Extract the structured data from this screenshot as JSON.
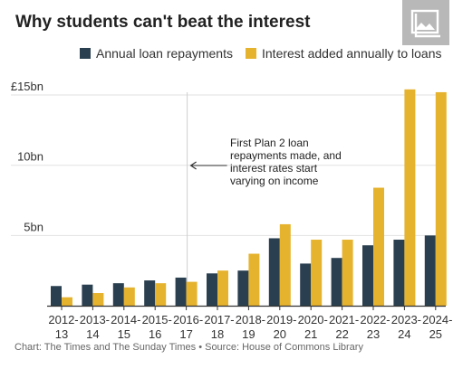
{
  "colors": {
    "repayments": "#2a4050",
    "interest": "#e6b32e",
    "grid": "#e2e2e2",
    "baseline": "#333333",
    "text": "#222222",
    "icon_bg": "#b8b8b8"
  },
  "header": {
    "title": "Why students can't beat the interest"
  },
  "toolbar": {
    "icon": "image-gallery-icon"
  },
  "legend": {
    "items": [
      {
        "label": "Annual loan repayments",
        "color": "#2a4050"
      },
      {
        "label": "Interest added annually to loans",
        "color": "#e6b32e"
      }
    ]
  },
  "annotation": {
    "lines": [
      "First Plan 2 loan",
      "repayments made, and",
      "interest rates start",
      "varying on income"
    ],
    "category": "2016-17",
    "arrow": "left-arrow"
  },
  "footer": {
    "text": "Chart: The Times and The Sunday Times • Source: House of Commons Library"
  },
  "chart_data": {
    "type": "bar",
    "title": "Why students can't beat the interest",
    "xlabel": "",
    "ylabel": "",
    "categories": [
      "2012-13",
      "2013-14",
      "2014-15",
      "2015-16",
      "2016-17",
      "2017-18",
      "2018-19",
      "2019-20",
      "2020-21",
      "2021-22",
      "2022-23",
      "2023-24",
      "2024-25"
    ],
    "category_labels": [
      [
        "2012-",
        "13"
      ],
      [
        "2013-",
        "14"
      ],
      [
        "2014-",
        "15"
      ],
      [
        "2015-",
        "16"
      ],
      [
        "2016-",
        "17"
      ],
      [
        "2017-",
        "18"
      ],
      [
        "2018-",
        "19"
      ],
      [
        "2019-",
        "20"
      ],
      [
        "2020-",
        "21"
      ],
      [
        "2021-",
        "22"
      ],
      [
        "2022-",
        "23"
      ],
      [
        "2023-",
        "24"
      ],
      [
        "2024-",
        "25"
      ]
    ],
    "series": [
      {
        "name": "Annual loan repayments",
        "values": [
          1.4,
          1.5,
          1.6,
          1.8,
          2.0,
          2.3,
          2.5,
          4.8,
          3.0,
          3.4,
          4.3,
          4.7,
          5.0
        ]
      },
      {
        "name": "Interest added annually to loans",
        "values": [
          0.6,
          0.9,
          1.3,
          1.6,
          1.7,
          2.5,
          3.7,
          5.8,
          4.7,
          4.7,
          8.4,
          15.4,
          15.2
        ]
      }
    ],
    "y_ticks": [
      5,
      10,
      15
    ],
    "y_tick_labels": [
      "5bn",
      "10bn",
      "£15bn"
    ],
    "ylim": [
      0,
      15.5
    ],
    "grid": true,
    "legend_position": "top"
  }
}
